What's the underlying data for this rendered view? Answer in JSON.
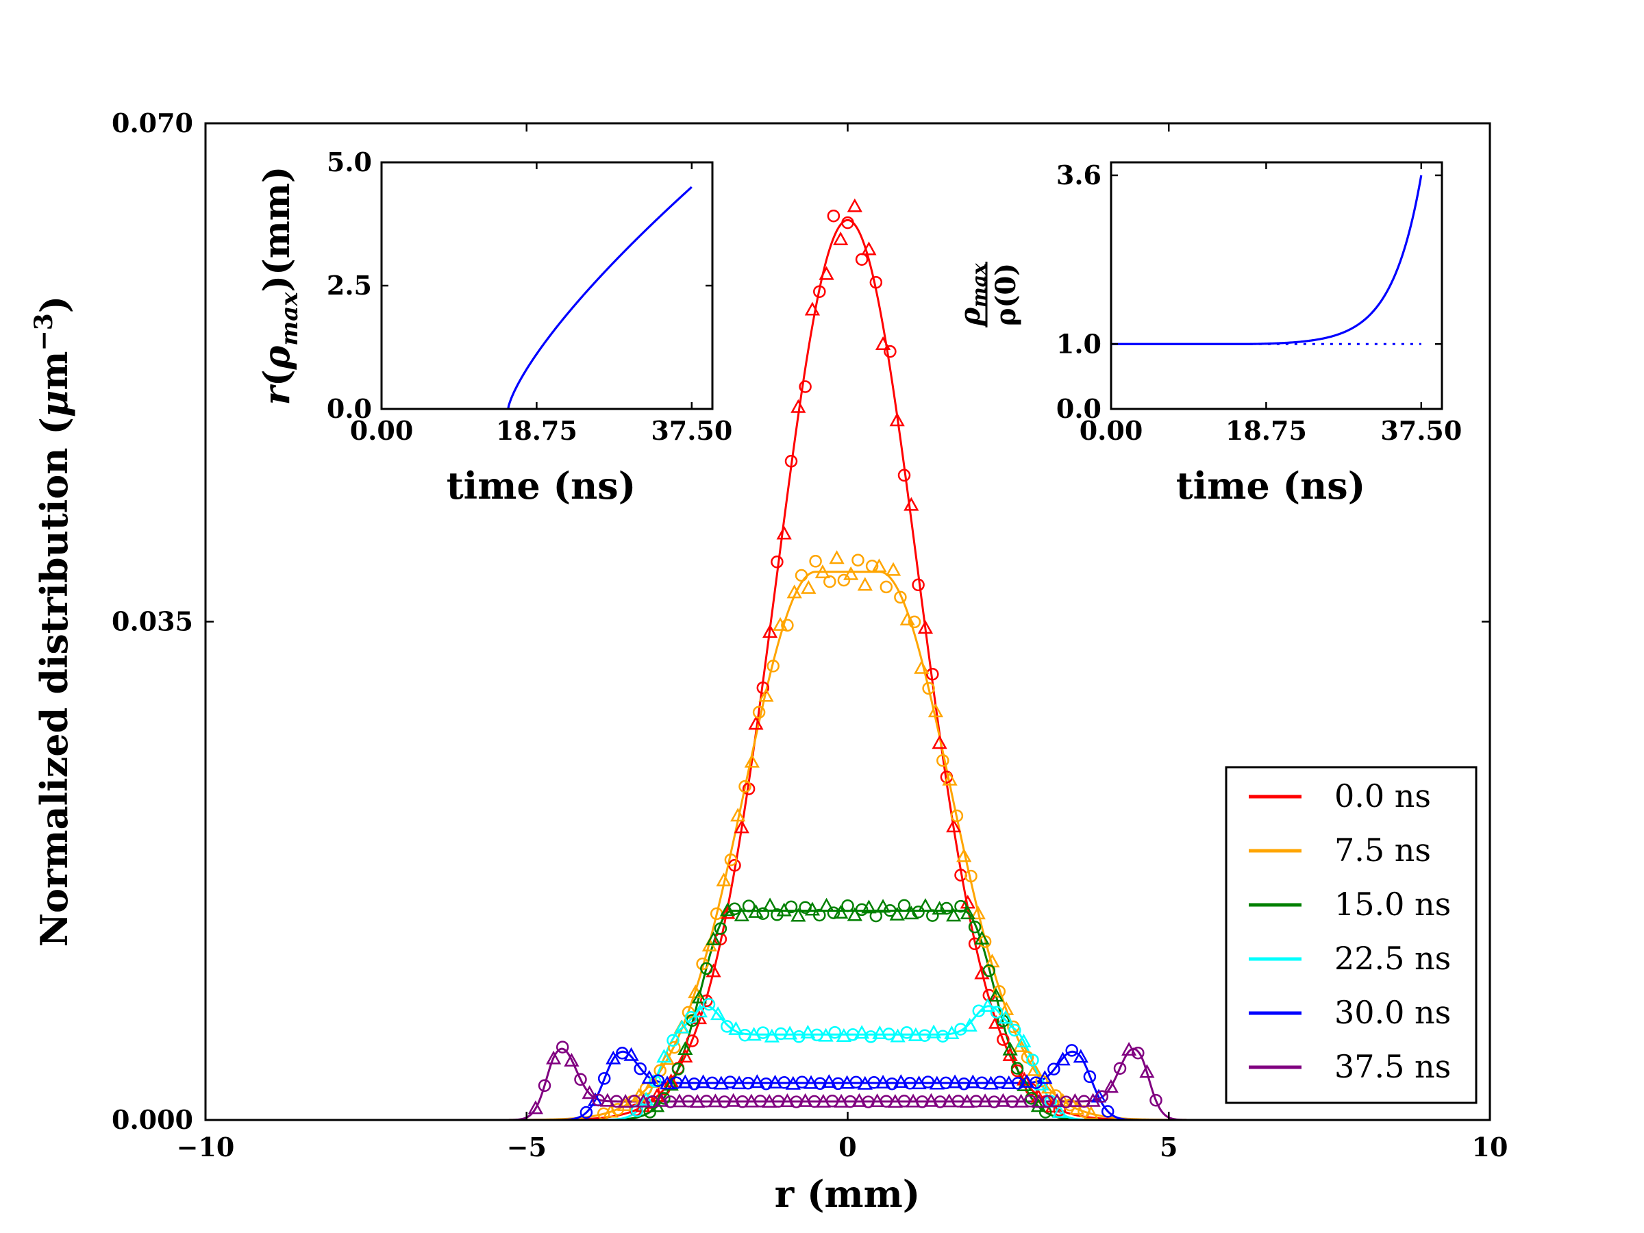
{
  "main": {
    "type": "line+scatter",
    "xlabel": "r (mm)",
    "ylabel": "Normalized distribution (μm⁻³)",
    "ylabel_main": "Normalized distribution (",
    "ylabel_mu": "μ",
    "ylabel_m": "m",
    "ylabel_exp": "−3",
    "ylabel_close": ")",
    "xlim": [
      -10,
      10
    ],
    "ylim": [
      0,
      0.07
    ],
    "xticks": [
      -10,
      -5,
      0,
      5,
      10
    ],
    "xtick_labels": [
      "−10",
      "−5",
      "0",
      "5",
      "10"
    ],
    "yticks": [
      0,
      0.035,
      0.07
    ],
    "ytick_labels": [
      "0.000",
      "0.035",
      "0.070"
    ],
    "legend_location": "lower-right",
    "series": [
      {
        "name": "0.0 ns",
        "color": "#ff0000",
        "amplitude": 0.0632,
        "plateau_half_width": 0.0,
        "edge_sigma": 1.1,
        "edge_peak": 0.0,
        "edge_peak_pos": 0.0
      },
      {
        "name": "7.5 ns",
        "color": "#ffa500",
        "amplitude": 0.0385,
        "plateau_half_width": 0.5,
        "edge_sigma": 1.1,
        "edge_peak": 0.0,
        "edge_peak_pos": 0.0
      },
      {
        "name": "15.0 ns",
        "color": "#008000",
        "amplitude": 0.0147,
        "plateau_half_width": 1.8,
        "edge_sigma": 0.5,
        "edge_peak": 0.0,
        "edge_peak_pos": 0.0
      },
      {
        "name": "22.5 ns",
        "color": "#00ffff",
        "amplitude": 0.006,
        "plateau_half_width": 2.6,
        "edge_sigma": 0.32,
        "edge_peak": 0.002,
        "edge_peak_pos": 2.2
      },
      {
        "name": "30.0 ns",
        "color": "#0000ff",
        "amplitude": 0.0026,
        "plateau_half_width": 3.6,
        "edge_sigma": 0.25,
        "edge_peak": 0.0022,
        "edge_peak_pos": 3.5
      },
      {
        "name": "37.5 ns",
        "color": "#800080",
        "amplitude": 0.0013,
        "plateau_half_width": 4.55,
        "edge_sigma": 0.15,
        "edge_peak": 0.0037,
        "edge_peak_pos": 4.45
      }
    ]
  },
  "inset_left": {
    "type": "line",
    "xlabel": "time (ns)",
    "ylabel": "r(ρmax)(mm)",
    "ylabel_r": "r",
    "ylabel_open": "(",
    "ylabel_rho": "ρ",
    "ylabel_sub": "max",
    "ylabel_close": ")(mm)",
    "xlim": [
      0,
      40
    ],
    "ylim": [
      0,
      5.0
    ],
    "xticks": [
      0,
      18.75,
      37.5
    ],
    "xtick_labels": [
      "0.00",
      "18.75",
      "37.50"
    ],
    "yticks": [
      0,
      2.5,
      5.0
    ],
    "ytick_labels": [
      "0.0",
      "2.5",
      "5.0"
    ],
    "color": "#0000ff",
    "curve": {
      "t0": 15.3,
      "t_end": 37.5,
      "r_end": 4.5,
      "exponent": 0.75
    }
  },
  "inset_right": {
    "type": "line",
    "xlabel": "time (ns)",
    "ylabel_num": "ρmax",
    "ylabel_num_rho": "ρ",
    "ylabel_num_sub": "max",
    "ylabel_den": "ρ(0)",
    "xlim": [
      0,
      40
    ],
    "ylim": [
      0,
      3.8
    ],
    "xticks": [
      0,
      18.75,
      37.5
    ],
    "xtick_labels": [
      "0.00",
      "18.75",
      "37.50"
    ],
    "yticks": [
      0,
      1.0,
      3.6
    ],
    "ytick_labels": [
      "0.0",
      "1.0",
      "3.6"
    ],
    "color": "#0000ff",
    "curve": {
      "t0": 16.8,
      "t_end": 37.5,
      "y_end": 3.6,
      "baseline": 1.0,
      "growth": 5.8
    },
    "dotted_baseline": 1.0
  }
}
